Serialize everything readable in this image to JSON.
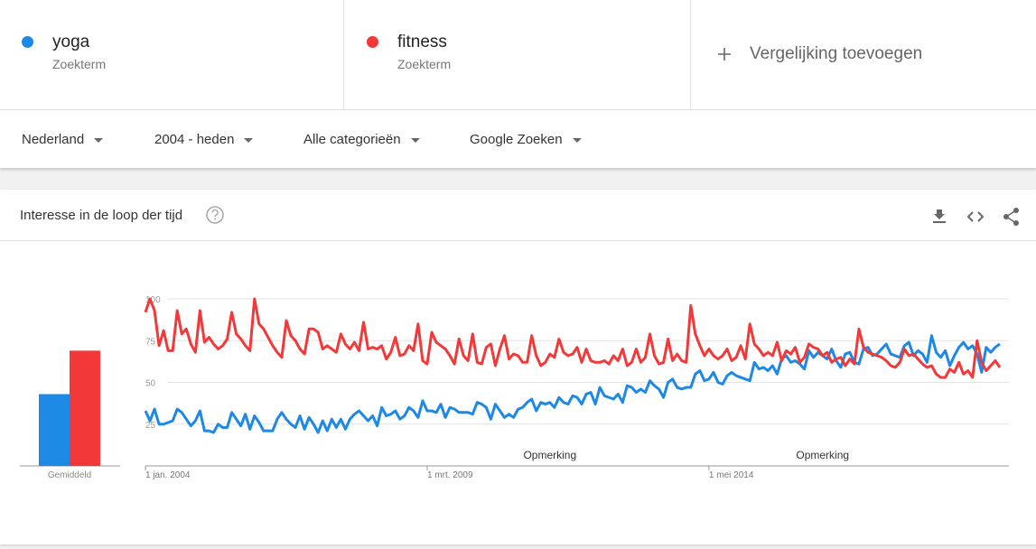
{
  "header": {
    "terms": [
      {
        "subtitle": "Zoekterm"
      },
      {
        "subtitle": "Zoekterm"
      }
    ],
    "add_compare": "Vergelijking toevoegen"
  },
  "filters": [
    "Nederland",
    "2004 - heden",
    "Alle categorieën",
    "Google Zoeken"
  ],
  "card_title": "Interesse in de loop der tijd",
  "chart_data": [
    {
      "type": "bar",
      "categories": [
        "Gemiddeld"
      ],
      "ylim": [
        0,
        100
      ],
      "series": [
        {
          "color": "#1e88e5",
          "values": [
            43
          ]
        },
        {
          "color": "#f23838",
          "values": [
            69
          ]
        }
      ]
    },
    {
      "type": "line",
      "ylim": [
        0,
        100
      ],
      "yticks": [
        25,
        50,
        75,
        100
      ],
      "grid": true,
      "xlim": [
        "2004-01-01",
        "2019-11-01"
      ],
      "xticks": [
        {
          "value": "2004-01-01",
          "label": "1 jan. 2004"
        },
        {
          "value": "2009-03-01",
          "label": "1 mrt. 2009"
        },
        {
          "value": "2014-05-01",
          "label": "1 mei 2014"
        }
      ],
      "annotations": [
        {
          "x": "2011-06-01",
          "text": "Opmerking"
        },
        {
          "x": "2016-06-01",
          "text": "Opmerking"
        }
      ],
      "x": [
        "2004-01-01",
        "2004-02-01",
        "2004-03-01",
        "2004-04-01",
        "2004-05-01",
        "2004-06-01",
        "2004-07-01",
        "2004-08-01",
        "2004-09-01",
        "2004-10-01",
        "2004-11-01",
        "2004-12-01",
        "2005-01-01",
        "2005-02-01",
        "2005-03-01",
        "2005-04-01",
        "2005-05-01",
        "2005-06-01",
        "2005-07-01",
        "2005-08-01",
        "2005-09-01",
        "2005-10-01",
        "2005-11-01",
        "2005-12-01",
        "2006-01-01",
        "2006-02-01",
        "2006-03-01",
        "2006-04-01",
        "2006-05-01",
        "2006-06-01",
        "2006-07-01",
        "2006-08-01",
        "2006-09-01",
        "2006-10-01",
        "2006-11-01",
        "2006-12-01",
        "2007-01-01",
        "2007-02-01",
        "2007-03-01",
        "2007-04-01",
        "2007-05-01",
        "2007-06-01",
        "2007-07-01",
        "2007-08-01",
        "2007-09-01",
        "2007-10-01",
        "2007-11-01",
        "2007-12-01",
        "2008-01-01",
        "2008-02-01",
        "2008-03-01",
        "2008-04-01",
        "2008-05-01",
        "2008-06-01",
        "2008-07-01",
        "2008-08-01",
        "2008-09-01",
        "2008-10-01",
        "2008-11-01",
        "2008-12-01",
        "2009-01-01",
        "2009-02-01",
        "2009-03-01",
        "2009-04-01",
        "2009-05-01",
        "2009-06-01",
        "2009-07-01",
        "2009-08-01",
        "2009-09-01",
        "2009-10-01",
        "2009-11-01",
        "2009-12-01",
        "2010-01-01",
        "2010-02-01",
        "2010-03-01",
        "2010-04-01",
        "2010-05-01",
        "2010-06-01",
        "2010-07-01",
        "2010-08-01",
        "2010-09-01",
        "2010-10-01",
        "2010-11-01",
        "2010-12-01",
        "2011-01-01",
        "2011-02-01",
        "2011-03-01",
        "2011-04-01",
        "2011-05-01",
        "2011-06-01",
        "2011-07-01",
        "2011-08-01",
        "2011-09-01",
        "2011-10-01",
        "2011-11-01",
        "2011-12-01",
        "2012-01-01",
        "2012-02-01",
        "2012-03-01",
        "2012-04-01",
        "2012-05-01",
        "2012-06-01",
        "2012-07-01",
        "2012-08-01",
        "2012-09-01",
        "2012-10-01",
        "2012-11-01",
        "2012-12-01",
        "2013-01-01",
        "2013-02-01",
        "2013-03-01",
        "2013-04-01",
        "2013-05-01",
        "2013-06-01",
        "2013-07-01",
        "2013-08-01",
        "2013-09-01",
        "2013-10-01",
        "2013-11-01",
        "2013-12-01",
        "2014-01-01",
        "2014-02-01",
        "2014-03-01",
        "2014-04-01",
        "2014-05-01",
        "2014-06-01",
        "2014-07-01",
        "2014-08-01",
        "2014-09-01",
        "2014-10-01",
        "2014-11-01",
        "2014-12-01",
        "2015-01-01",
        "2015-02-01",
        "2015-03-01",
        "2015-04-01",
        "2015-05-01",
        "2015-06-01",
        "2015-07-01",
        "2015-08-01",
        "2015-09-01",
        "2015-10-01",
        "2015-11-01",
        "2015-12-01",
        "2016-01-01",
        "2016-02-01",
        "2016-03-01",
        "2016-04-01",
        "2016-05-01",
        "2016-06-01",
        "2016-07-01",
        "2016-08-01",
        "2016-09-01",
        "2016-10-01",
        "2016-11-01",
        "2016-12-01",
        "2017-01-01",
        "2017-02-01",
        "2017-03-01",
        "2017-04-01",
        "2017-05-01",
        "2017-06-01",
        "2017-07-01",
        "2017-08-01",
        "2017-09-01",
        "2017-10-01",
        "2017-11-01",
        "2017-12-01",
        "2018-01-01",
        "2018-02-01",
        "2018-03-01",
        "2018-04-01",
        "2018-05-01",
        "2018-06-01",
        "2018-07-01",
        "2018-08-01",
        "2018-09-01",
        "2018-10-01",
        "2018-11-01",
        "2018-12-01",
        "2019-01-01",
        "2019-02-01",
        "2019-03-01",
        "2019-04-01",
        "2019-05-01",
        "2019-06-01",
        "2019-07-01",
        "2019-08-01",
        "2019-09-01"
      ],
      "series": [
        {
          "name": "yoga",
          "color": "#1e88e5",
          "values": [
            33,
            27,
            34,
            25,
            25,
            26,
            27,
            34,
            32,
            28,
            24,
            27,
            33,
            21,
            21,
            20,
            25,
            23,
            23,
            32,
            28,
            24,
            31,
            22,
            30,
            26,
            21,
            21,
            21,
            28,
            32,
            28,
            25,
            23,
            30,
            22,
            29,
            25,
            20,
            27,
            21,
            28,
            23,
            28,
            22,
            28,
            31,
            33,
            30,
            27,
            30,
            24,
            35,
            30,
            31,
            33,
            28,
            30,
            35,
            33,
            29,
            39,
            33,
            33,
            32,
            37,
            29,
            35,
            34,
            32,
            32,
            32,
            31,
            38,
            37,
            35,
            28,
            37,
            33,
            29,
            31,
            29,
            34,
            35,
            38,
            40,
            33,
            38,
            37,
            38,
            35,
            41,
            38,
            37,
            42,
            41,
            37,
            43,
            44,
            37,
            47,
            42,
            41,
            40,
            43,
            38,
            48,
            47,
            44,
            46,
            44,
            51,
            48,
            46,
            41,
            50,
            52,
            47,
            46,
            47,
            47,
            55,
            57,
            51,
            52,
            56,
            50,
            49,
            54,
            56,
            54,
            53,
            52,
            51,
            62,
            58,
            59,
            57,
            60,
            55,
            64,
            66,
            62,
            63,
            61,
            58,
            69,
            65,
            68,
            66,
            64,
            70,
            63,
            59,
            67,
            68,
            62,
            61,
            70,
            71,
            66,
            67,
            70,
            73,
            67,
            66,
            65,
            72,
            74,
            66,
            69,
            67,
            62,
            78,
            68,
            65,
            69,
            60,
            66,
            71,
            74,
            70,
            72,
            67,
            56,
            71,
            68,
            71,
            73
          ]
        },
        {
          "name": "fitness",
          "color": "#f23838",
          "values": [
            92,
            100,
            93,
            72,
            81,
            69,
            69,
            93,
            79,
            82,
            73,
            68,
            93,
            74,
            77,
            73,
            70,
            72,
            76,
            92,
            79,
            76,
            72,
            69,
            100,
            85,
            82,
            77,
            72,
            68,
            65,
            87,
            78,
            75,
            70,
            67,
            82,
            82,
            80,
            70,
            72,
            70,
            68,
            79,
            73,
            70,
            74,
            69,
            86,
            70,
            71,
            70,
            72,
            64,
            68,
            77,
            66,
            67,
            72,
            69,
            85,
            63,
            61,
            80,
            74,
            72,
            70,
            66,
            61,
            76,
            66,
            63,
            79,
            62,
            61,
            71,
            73,
            60,
            70,
            78,
            64,
            67,
            66,
            62,
            62,
            78,
            66,
            60,
            62,
            67,
            65,
            76,
            68,
            66,
            67,
            71,
            62,
            70,
            63,
            62,
            62,
            63,
            61,
            66,
            63,
            70,
            60,
            62,
            70,
            62,
            65,
            79,
            66,
            61,
            62,
            76,
            63,
            67,
            63,
            62,
            96,
            79,
            72,
            66,
            70,
            66,
            64,
            66,
            70,
            63,
            65,
            72,
            64,
            85,
            73,
            70,
            66,
            68,
            66,
            74,
            63,
            69,
            67,
            71,
            62,
            65,
            73,
            71,
            70,
            66,
            68,
            62,
            64,
            65,
            60,
            64,
            61,
            82,
            71,
            68,
            67,
            66,
            65,
            63,
            60,
            59,
            62,
            70,
            66,
            67,
            64,
            61,
            59,
            60,
            55,
            53,
            53,
            58,
            56,
            62,
            55,
            57,
            53,
            75,
            62,
            57,
            60,
            63,
            59
          ]
        }
      ]
    }
  ]
}
